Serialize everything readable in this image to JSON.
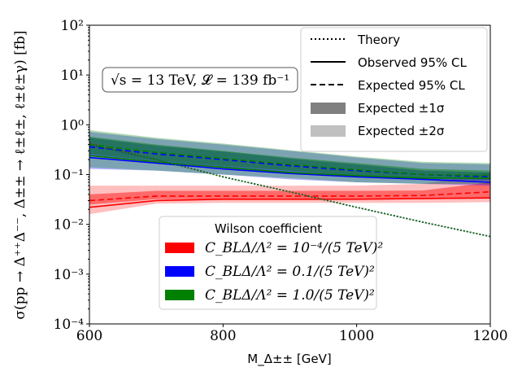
{
  "chart_data": {
    "type": "line",
    "xlabel": "M_Δ±± [GeV]",
    "ylabel": "σ(pp → Δ⁺⁺Δ⁻⁻, Δ±± → ℓ±ℓ±, ℓ±ℓ±γ) [fb]",
    "xlim": [
      600,
      1200
    ],
    "ylim": [
      0.0001,
      100
    ],
    "yscale": "log",
    "xticks": [
      "600",
      "800",
      "1000",
      "1200"
    ],
    "xtick_values": [
      600,
      800,
      1000,
      1200
    ],
    "yticks": [
      "10²",
      "10¹",
      "10⁰",
      "10⁻¹",
      "10⁻²",
      "10⁻³",
      "10⁻⁴"
    ],
    "ytick_values": [
      100,
      10,
      1,
      0.1,
      0.01,
      0.001,
      0.0001
    ],
    "annotation": "√s = 13 TeV, 𝓛 = 139 fb⁻¹",
    "legend_style": {
      "title": "",
      "entries": [
        "Theory",
        "Observed 95% CL",
        "Expected 95% CL",
        "Expected ±1σ",
        "Expected ±2σ"
      ],
      "placement": "top-right"
    },
    "legend_coeff": {
      "title": "Wilson coefficient",
      "entries": [
        "C_BLΔ/Λ² = 10⁻⁴/(5 TeV)²",
        "C_BLΔ/Λ² = 0.1/(5 TeV)²",
        "C_BLΔ/Λ² = 1.0/(5 TeV)²"
      ],
      "placement": "bottom-center"
    },
    "x": [
      600,
      700,
      800,
      900,
      1000,
      1100,
      1200
    ],
    "series": [
      {
        "name": "10^-4",
        "color": "#ff0000",
        "theory": [
          0.42,
          0.2,
          0.09,
          0.045,
          0.022,
          0.011,
          0.0057
        ],
        "observed": [
          0.022,
          0.03,
          0.032,
          0.032,
          0.032,
          0.033,
          0.034
        ],
        "expected": [
          0.03,
          0.037,
          0.037,
          0.037,
          0.037,
          0.038,
          0.045
        ],
        "band1_lo": [
          0.025,
          0.032,
          0.032,
          0.032,
          0.032,
          0.032,
          0.033
        ],
        "band1_hi": [
          0.04,
          0.047,
          0.047,
          0.047,
          0.047,
          0.048,
          0.07
        ],
        "band2_lo": [
          0.016,
          0.026,
          0.027,
          0.027,
          0.027,
          0.027,
          0.028
        ],
        "band2_hi": [
          0.06,
          0.06,
          0.06,
          0.06,
          0.06,
          0.065,
          0.11
        ]
      },
      {
        "name": "0.1",
        "color": "#0000ff",
        "theory": [
          0.4,
          0.2,
          0.09,
          0.045,
          0.022,
          0.011,
          0.0057
        ],
        "observed": [
          0.22,
          0.17,
          0.13,
          0.105,
          0.09,
          0.08,
          0.07
        ],
        "expected": [
          0.36,
          0.26,
          0.2,
          0.15,
          0.12,
          0.1,
          0.09
        ],
        "band1_lo": [
          0.24,
          0.18,
          0.14,
          0.11,
          0.09,
          0.08,
          0.075
        ],
        "band1_hi": [
          0.55,
          0.38,
          0.29,
          0.21,
          0.16,
          0.12,
          0.11
        ],
        "band2_lo": [
          0.13,
          0.12,
          0.1,
          0.08,
          0.07,
          0.065,
          0.06
        ],
        "band2_hi": [
          0.72,
          0.52,
          0.4,
          0.3,
          0.22,
          0.17,
          0.16
        ]
      },
      {
        "name": "1.0",
        "color": "#008000",
        "theory": [
          0.41,
          0.2,
          0.09,
          0.045,
          0.022,
          0.011,
          0.0057
        ],
        "observed": [
          0.24,
          0.18,
          0.14,
          0.11,
          0.095,
          0.085,
          0.085
        ],
        "expected": [
          0.4,
          0.28,
          0.21,
          0.16,
          0.125,
          0.1,
          0.095
        ],
        "band1_lo": [
          0.26,
          0.19,
          0.15,
          0.12,
          0.095,
          0.085,
          0.08
        ],
        "band1_hi": [
          0.58,
          0.4,
          0.3,
          0.22,
          0.17,
          0.13,
          0.12
        ],
        "band2_lo": [
          0.14,
          0.12,
          0.1,
          0.085,
          0.07,
          0.065,
          0.065
        ],
        "band2_hi": [
          0.78,
          0.55,
          0.42,
          0.31,
          0.23,
          0.18,
          0.17
        ]
      }
    ]
  }
}
